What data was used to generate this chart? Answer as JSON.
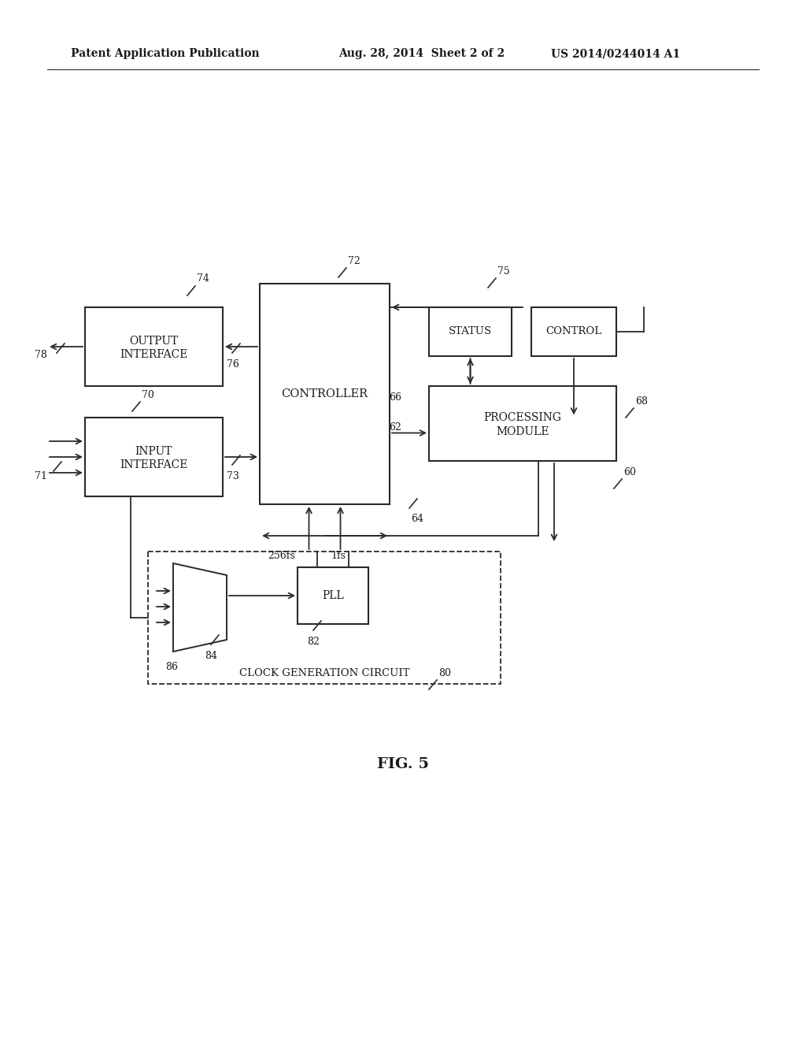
{
  "bg_color": "#ffffff",
  "line_color": "#2a2a2a",
  "text_color": "#1a1a1a",
  "header_left": "Patent Application Publication",
  "header_mid": "Aug. 28, 2014  Sheet 2 of 2",
  "header_right": "US 2014/0244014 A1",
  "fig_label": "FIG. 5"
}
